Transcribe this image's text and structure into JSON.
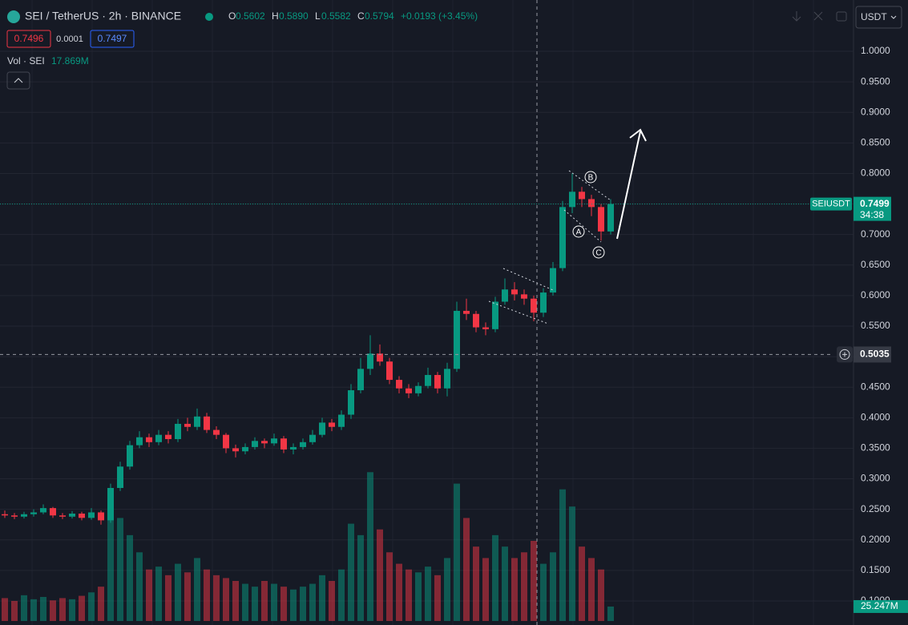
{
  "header": {
    "symbol": "SEI / TetherUS · 2h · BINANCE",
    "ohlc": [
      {
        "key": "O",
        "value": "0.5602"
      },
      {
        "key": "H",
        "value": "0.5890"
      },
      {
        "key": "L",
        "value": "0.5582"
      },
      {
        "key": "C",
        "value": "0.5794"
      }
    ],
    "change": "+0.0193 (+3.45%)",
    "bid": "0.7496",
    "spread": "0.0001",
    "ask": "0.7497",
    "volume_label": "Vol · SEI",
    "volume_value": "17.869M",
    "currency": "USDT"
  },
  "chart_data": {
    "type": "candlestick",
    "ylim": [
      0.0606,
      1.084
    ],
    "yticks": [
      {
        "value": 0.1,
        "label": "0.1000"
      },
      {
        "value": 0.15,
        "label": "0.1500"
      },
      {
        "value": 0.2,
        "label": "0.2000"
      },
      {
        "value": 0.25,
        "label": "0.2500"
      },
      {
        "value": 0.3,
        "label": "0.3000"
      },
      {
        "value": 0.35,
        "label": "0.3500"
      },
      {
        "value": 0.4,
        "label": "0.4000"
      },
      {
        "value": 0.45,
        "label": "0.4500"
      },
      {
        "value": 0.5,
        "label": "0.5000"
      },
      {
        "value": 0.55,
        "label": "0.5500"
      },
      {
        "value": 0.6,
        "label": "0.6000"
      },
      {
        "value": 0.65,
        "label": "0.6500"
      },
      {
        "value": 0.7,
        "label": "0.7000"
      },
      {
        "value": 0.75,
        "label": "0.7500"
      },
      {
        "value": 0.8,
        "label": "0.8000"
      },
      {
        "value": 0.85,
        "label": "0.8500"
      },
      {
        "value": 0.9,
        "label": "0.9000"
      },
      {
        "value": 0.95,
        "label": "0.9500"
      },
      {
        "value": 1,
        "label": "1.0000"
      }
    ],
    "grid": true,
    "up_color": "#089981",
    "down_color": "#f23645",
    "open": [
      0.242,
      0.24,
      0.238,
      0.242,
      0.245,
      0.252,
      0.24,
      0.238,
      0.243,
      0.236,
      0.245,
      0.232,
      0.285,
      0.32,
      0.355,
      0.368,
      0.36,
      0.372,
      0.365,
      0.39,
      0.385,
      0.402,
      0.38,
      0.372,
      0.35,
      0.345,
      0.352,
      0.362,
      0.358,
      0.366,
      0.348,
      0.352,
      0.36,
      0.372,
      0.392,
      0.385,
      0.405,
      0.445,
      0.48,
      0.505,
      0.492,
      0.462,
      0.448,
      0.44,
      0.452,
      0.47,
      0.448,
      0.48,
      0.575,
      0.57,
      0.548,
      0.545,
      0.59,
      0.61,
      0.602,
      0.595,
      0.572,
      0.605,
      0.645,
      0.745,
      0.77,
      0.758,
      0.745,
      0.705
    ],
    "high": [
      0.248,
      0.244,
      0.246,
      0.25,
      0.258,
      0.254,
      0.244,
      0.247,
      0.246,
      0.252,
      0.248,
      0.292,
      0.328,
      0.362,
      0.378,
      0.374,
      0.38,
      0.378,
      0.398,
      0.4,
      0.415,
      0.408,
      0.386,
      0.375,
      0.356,
      0.358,
      0.368,
      0.366,
      0.374,
      0.37,
      0.358,
      0.366,
      0.38,
      0.4,
      0.398,
      0.412,
      0.455,
      0.498,
      0.535,
      0.52,
      0.498,
      0.468,
      0.455,
      0.458,
      0.482,
      0.475,
      0.49,
      0.59,
      0.595,
      0.575,
      0.556,
      0.598,
      0.628,
      0.622,
      0.61,
      0.6,
      0.612,
      0.655,
      0.755,
      0.8,
      0.778,
      0.765,
      0.75,
      0.758
    ],
    "low": [
      0.236,
      0.234,
      0.235,
      0.238,
      0.242,
      0.236,
      0.234,
      0.235,
      0.232,
      0.233,
      0.225,
      0.228,
      0.28,
      0.315,
      0.35,
      0.352,
      0.355,
      0.358,
      0.36,
      0.378,
      0.38,
      0.375,
      0.365,
      0.342,
      0.335,
      0.34,
      0.348,
      0.35,
      0.354,
      0.342,
      0.34,
      0.348,
      0.356,
      0.368,
      0.378,
      0.38,
      0.398,
      0.44,
      0.47,
      0.485,
      0.455,
      0.44,
      0.432,
      0.435,
      0.448,
      0.44,
      0.435,
      0.475,
      0.56,
      0.54,
      0.535,
      0.54,
      0.585,
      0.592,
      0.585,
      0.558,
      0.565,
      0.6,
      0.64,
      0.735,
      0.745,
      0.73,
      0.69,
      0.7
    ],
    "close": [
      0.24,
      0.238,
      0.242,
      0.245,
      0.252,
      0.24,
      0.238,
      0.243,
      0.236,
      0.245,
      0.232,
      0.285,
      0.32,
      0.355,
      0.368,
      0.36,
      0.372,
      0.365,
      0.39,
      0.385,
      0.402,
      0.38,
      0.372,
      0.35,
      0.345,
      0.352,
      0.362,
      0.358,
      0.366,
      0.348,
      0.352,
      0.36,
      0.372,
      0.392,
      0.385,
      0.405,
      0.445,
      0.48,
      0.505,
      0.492,
      0.462,
      0.448,
      0.44,
      0.452,
      0.47,
      0.448,
      0.48,
      0.575,
      0.57,
      0.548,
      0.545,
      0.59,
      0.61,
      0.602,
      0.595,
      0.572,
      0.605,
      0.645,
      0.745,
      0.77,
      0.758,
      0.745,
      0.705,
      0.75
    ],
    "volume": [
      40,
      35,
      45,
      38,
      42,
      36,
      40,
      38,
      44,
      50,
      60,
      230,
      180,
      150,
      120,
      90,
      95,
      80,
      100,
      85,
      110,
      90,
      80,
      75,
      70,
      65,
      60,
      70,
      65,
      60,
      55,
      60,
      65,
      80,
      70,
      90,
      170,
      150,
      260,
      160,
      120,
      100,
      90,
      85,
      95,
      80,
      110,
      240,
      180,
      130,
      110,
      150,
      130,
      110,
      120,
      140,
      100,
      120,
      230,
      200,
      130,
      110,
      90,
      25.247
    ],
    "volume_lim": [
      0,
      280
    ],
    "volume_last_label": "25.247M",
    "symbol_tag": "SEIUSDT",
    "last_price": {
      "value": 0.7499,
      "label": "0.7499"
    },
    "countdown": "34:38",
    "crosshair_price": {
      "value": 0.5035,
      "label": "0.5035"
    },
    "wave_labels": [
      "A",
      "B",
      "C"
    ]
  }
}
